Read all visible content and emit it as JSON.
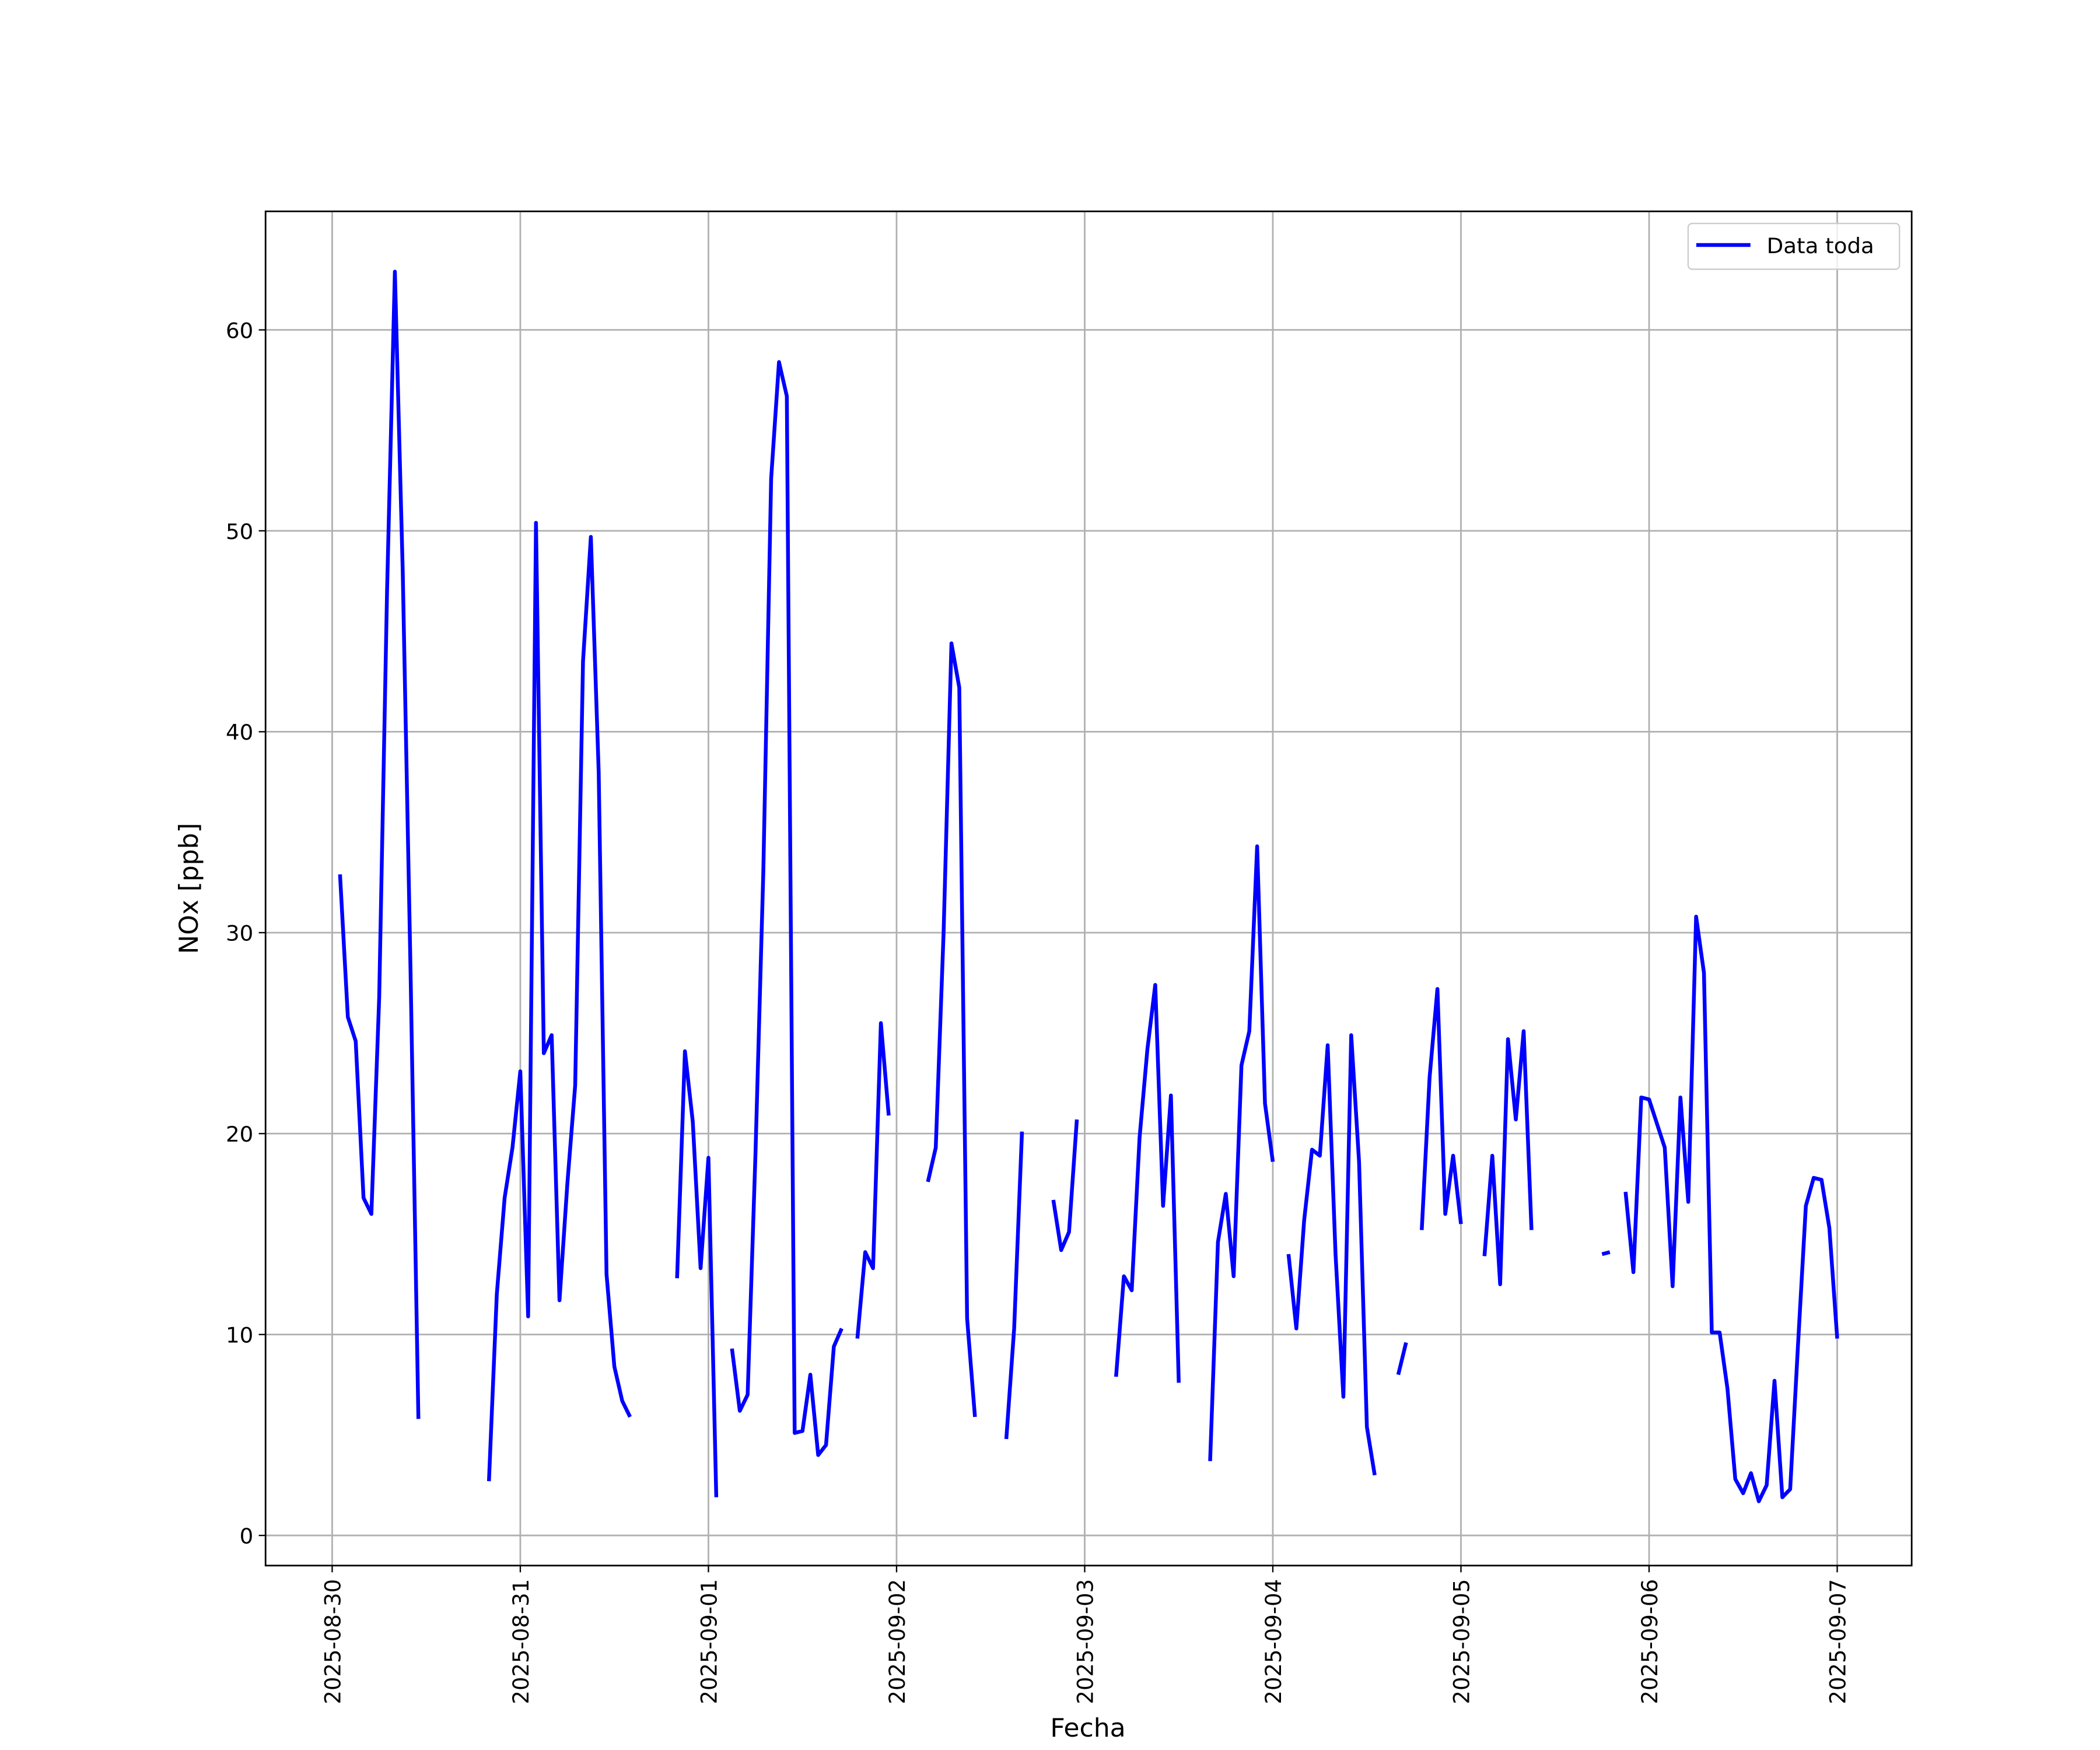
{
  "chart_data": {
    "type": "line",
    "xlabel": "Fecha",
    "ylabel": "NOx [ppb]",
    "x": [
      "2025-08-30 01:00",
      "2025-08-30 02:00",
      "2025-08-30 03:00",
      "2025-08-30 04:00",
      "2025-08-30 05:00",
      "2025-08-30 06:00",
      "2025-08-30 07:00",
      "2025-08-30 08:00",
      "2025-08-30 09:00",
      "2025-08-30 10:00",
      "2025-08-30 11:00",
      "2025-08-30 12:00",
      "2025-08-30 13:00",
      "2025-08-30 14:00",
      "2025-08-30 15:00",
      "2025-08-30 16:00",
      "2025-08-30 17:00",
      "2025-08-30 18:00",
      "2025-08-30 19:00",
      "2025-08-30 20:00",
      "2025-08-30 21:00",
      "2025-08-30 22:00",
      "2025-08-30 23:00",
      "2025-08-31 00:00",
      "2025-08-31 01:00",
      "2025-08-31 02:00",
      "2025-08-31 03:00",
      "2025-08-31 04:00",
      "2025-08-31 05:00",
      "2025-08-31 06:00",
      "2025-08-31 07:00",
      "2025-08-31 08:00",
      "2025-08-31 09:00",
      "2025-08-31 10:00",
      "2025-08-31 11:00",
      "2025-08-31 12:00",
      "2025-08-31 13:00",
      "2025-08-31 14:00",
      "2025-08-31 15:00",
      "2025-08-31 16:00",
      "2025-08-31 17:00",
      "2025-08-31 18:00",
      "2025-08-31 19:00",
      "2025-08-31 20:00",
      "2025-08-31 21:00",
      "2025-08-31 22:00",
      "2025-08-31 23:00",
      "2025-09-01 00:00",
      "2025-09-01 01:00",
      "2025-09-01 02:00",
      "2025-09-01 03:00",
      "2025-09-01 04:00",
      "2025-09-01 05:00",
      "2025-09-01 06:00",
      "2025-09-01 07:00",
      "2025-09-01 08:00",
      "2025-09-01 09:00",
      "2025-09-01 10:00",
      "2025-09-01 11:00",
      "2025-09-01 12:00",
      "2025-09-01 13:00",
      "2025-09-01 14:00",
      "2025-09-01 15:00",
      "2025-09-01 16:00",
      "2025-09-01 17:00",
      "2025-09-01 18:00",
      "2025-09-01 19:00",
      "2025-09-01 20:00",
      "2025-09-01 21:00",
      "2025-09-01 22:00",
      "2025-09-01 23:00",
      "2025-09-02 00:00",
      "2025-09-02 01:00",
      "2025-09-02 02:00",
      "2025-09-02 03:00",
      "2025-09-02 04:00",
      "2025-09-02 05:00",
      "2025-09-02 06:00",
      "2025-09-02 07:00",
      "2025-09-02 08:00",
      "2025-09-02 09:00",
      "2025-09-02 10:00",
      "2025-09-02 11:00",
      "2025-09-02 12:00",
      "2025-09-02 13:00",
      "2025-09-02 14:00",
      "2025-09-02 15:00",
      "2025-09-02 16:00",
      "2025-09-02 17:00",
      "2025-09-02 18:00",
      "2025-09-02 19:00",
      "2025-09-02 20:00",
      "2025-09-02 21:00",
      "2025-09-02 22:00",
      "2025-09-02 23:00",
      "2025-09-03 00:00",
      "2025-09-03 01:00",
      "2025-09-03 02:00",
      "2025-09-03 03:00",
      "2025-09-03 04:00",
      "2025-09-03 05:00",
      "2025-09-03 06:00",
      "2025-09-03 07:00",
      "2025-09-03 08:00",
      "2025-09-03 09:00",
      "2025-09-03 10:00",
      "2025-09-03 11:00",
      "2025-09-03 12:00",
      "2025-09-03 13:00",
      "2025-09-03 14:00",
      "2025-09-03 15:00",
      "2025-09-03 16:00",
      "2025-09-03 17:00",
      "2025-09-03 18:00",
      "2025-09-03 19:00",
      "2025-09-03 20:00",
      "2025-09-03 21:00",
      "2025-09-03 22:00",
      "2025-09-03 23:00",
      "2025-09-04 00:00",
      "2025-09-04 01:00",
      "2025-09-04 02:00",
      "2025-09-04 03:00",
      "2025-09-04 04:00",
      "2025-09-04 05:00",
      "2025-09-04 06:00",
      "2025-09-04 07:00",
      "2025-09-04 08:00",
      "2025-09-04 09:00",
      "2025-09-04 10:00",
      "2025-09-04 11:00",
      "2025-09-04 12:00",
      "2025-09-04 13:00",
      "2025-09-04 14:00",
      "2025-09-04 15:00",
      "2025-09-04 16:00",
      "2025-09-04 17:00",
      "2025-09-04 18:00",
      "2025-09-04 19:00",
      "2025-09-04 20:00",
      "2025-09-04 21:00",
      "2025-09-04 22:00",
      "2025-09-04 23:00",
      "2025-09-05 00:00",
      "2025-09-05 01:00",
      "2025-09-05 02:00",
      "2025-09-05 03:00",
      "2025-09-05 04:00",
      "2025-09-05 05:00",
      "2025-09-05 06:00",
      "2025-09-05 07:00",
      "2025-09-05 08:00",
      "2025-09-05 09:00",
      "2025-09-05 10:00",
      "2025-09-05 11:00",
      "2025-09-05 12:00",
      "2025-09-05 13:00",
      "2025-09-05 14:00",
      "2025-09-05 15:00",
      "2025-09-05 16:00",
      "2025-09-05 17:00",
      "2025-09-05 18:00",
      "2025-09-05 19:00",
      "2025-09-05 20:00",
      "2025-09-05 21:00",
      "2025-09-05 22:00",
      "2025-09-05 23:00",
      "2025-09-06 00:00",
      "2025-09-06 01:00",
      "2025-09-06 02:00",
      "2025-09-06 03:00",
      "2025-09-06 04:00",
      "2025-09-06 05:00",
      "2025-09-06 06:00",
      "2025-09-06 07:00",
      "2025-09-06 08:00",
      "2025-09-06 09:00",
      "2025-09-06 10:00",
      "2025-09-06 11:00",
      "2025-09-06 12:00",
      "2025-09-06 13:00",
      "2025-09-06 14:00",
      "2025-09-06 15:00",
      "2025-09-06 16:00",
      "2025-09-06 17:00",
      "2025-09-06 18:00",
      "2025-09-06 19:00",
      "2025-09-06 20:00",
      "2025-09-06 21:00",
      "2025-09-06 22:00",
      "2025-09-06 23:00",
      "2025-09-07 00:00"
    ],
    "series": [
      {
        "name": "Data toda",
        "color": "#0000ff",
        "values": [
          32.9,
          25.8,
          24.6,
          16.8,
          16.0,
          26.8,
          47,
          62.9,
          48,
          28,
          5.8,
          null,
          null,
          null,
          null,
          null,
          null,
          null,
          null,
          2.7,
          12,
          16.8,
          19.3,
          23.1,
          10.9,
          50.4,
          24.0,
          24.9,
          11.7,
          17.5,
          22.4,
          43.5,
          49.7,
          38,
          13,
          8.4,
          6.7,
          5.9,
          null,
          null,
          null,
          null,
          null,
          12.8,
          24.1,
          20.6,
          13.3,
          18.8,
          1.9,
          null,
          9.3,
          6.2,
          7.0,
          19,
          33,
          52.6,
          58.4,
          56.7,
          5.1,
          5.2,
          8.0,
          4.0,
          4.5,
          9.4,
          10.3,
          null,
          9.8,
          14.1,
          13.3,
          25.5,
          20.9,
          null,
          null,
          null,
          null,
          17.6,
          19.3,
          30,
          44.4,
          42.2,
          10.8,
          5.9,
          null,
          null,
          null,
          4.8,
          10.3,
          20.1,
          null,
          null,
          null,
          16.7,
          14.2,
          15.1,
          20.7,
          null,
          null,
          null,
          null,
          7.9,
          12.9,
          12.2,
          19.8,
          24.2,
          27.4,
          16.4,
          21.9,
          7.6,
          null,
          null,
          null,
          3.7,
          14.6,
          17.0,
          12.9,
          23.4,
          25.1,
          34.3,
          21.5,
          18.6,
          null,
          14.0,
          10.3,
          15.7,
          19.2,
          18.9,
          24.4,
          14,
          6.9,
          24.9,
          18.6,
          5.4,
          3.0,
          null,
          null,
          8.0,
          9.6,
          null,
          15.2,
          22.8,
          27.2,
          16.0,
          18.9,
          15.5,
          null,
          null,
          13.9,
          18.9,
          12.5,
          24.7,
          20.7,
          25.1,
          15.2,
          null,
          null,
          null,
          null,
          null,
          null,
          null,
          null,
          14.0,
          14.1,
          null,
          17.1,
          13.1,
          21.8,
          21.7,
          20.5,
          19.3,
          12.4,
          21.8,
          16.6,
          30.8,
          28.0,
          10.1,
          10.1,
          7.3,
          2.8,
          2.1,
          3.1,
          1.7,
          2.5,
          7.7,
          1.9,
          2.3,
          9.5,
          16.4,
          17.8,
          17.7,
          15.3,
          9.8
        ]
      }
    ],
    "xlim": [
      "2025-08-29 15:30",
      "2025-09-07 09:30"
    ],
    "xticks": [
      "2025-08-30",
      "2025-08-31",
      "2025-09-01",
      "2025-09-02",
      "2025-09-03",
      "2025-09-04",
      "2025-09-05",
      "2025-09-06",
      "2025-09-07"
    ],
    "ylim": [
      -1.5,
      65.9
    ],
    "yticks": [
      0,
      10,
      20,
      30,
      40,
      50,
      60
    ],
    "grid": true,
    "legend": "upper right"
  }
}
